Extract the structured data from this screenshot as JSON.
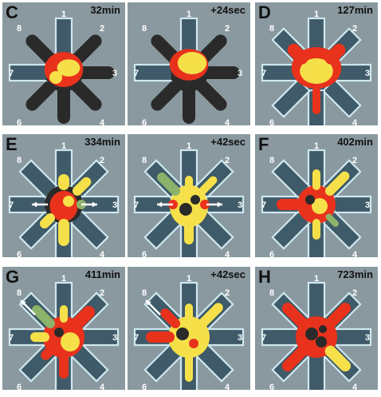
{
  "arm_numbers": [
    "1",
    "2",
    "3",
    "4",
    "5",
    "6",
    "7",
    "8"
  ],
  "colors": {
    "background": "#8a999f",
    "arm_fill": "#3f5a68",
    "arm_outline": "#cfe8ef",
    "dark_mass": "#2a2a2a",
    "red": "#e8321c",
    "yellow": "#f5e04a",
    "green": "#8db36a"
  },
  "panels": [
    {
      "label": "C",
      "time": "32min",
      "arms_style": "dark",
      "blob": "center-small"
    },
    {
      "label": "",
      "time": "+24sec",
      "arms_style": "dark",
      "blob": "center-small-up"
    },
    {
      "label": "D",
      "time": "127min",
      "arms_style": "outline",
      "blob": "spread-up"
    },
    {
      "label": "E",
      "time": "334min",
      "arms_style": "outline",
      "blob": "spread-arrows"
    },
    {
      "label": "",
      "time": "+42sec",
      "arms_style": "outline",
      "blob": "spread-arrows-green"
    },
    {
      "label": "F",
      "time": "402min",
      "arms_style": "outline",
      "blob": "spread-left"
    },
    {
      "label": "G",
      "time": "411min",
      "arms_style": "outline",
      "blob": "spread-arrow8"
    },
    {
      "label": "",
      "time": "+42sec",
      "arms_style": "outline",
      "blob": "spread-arrow8-b"
    },
    {
      "label": "H",
      "time": "723min",
      "arms_style": "outline",
      "blob": "x-shape"
    }
  ]
}
